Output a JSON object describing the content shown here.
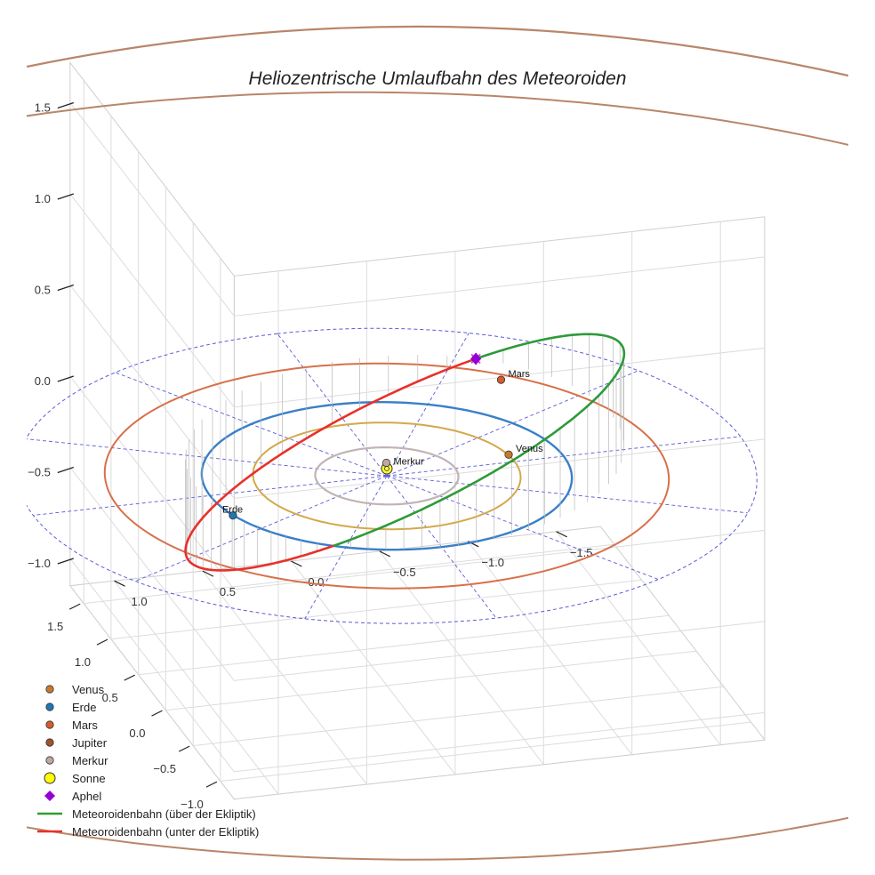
{
  "chart_data": {
    "type": "scatter",
    "projection": "3d",
    "title": "Heliozentrische Umlaufbahn des Meteoroiden",
    "axes": {
      "x": {
        "ticks": [
          -1.0,
          -0.5,
          0.0,
          0.5,
          1.0,
          1.5
        ],
        "labels": [
          "−1.0",
          "−0.5",
          "0.0",
          "0.5",
          "1.0",
          "1.5"
        ]
      },
      "y": {
        "ticks": [
          -1.5,
          -1.0,
          -0.5,
          0.0,
          0.5,
          1.0
        ],
        "labels": [
          "−1.5",
          "−1.0",
          "−0.5",
          "0.0",
          "0.5",
          "1.0"
        ]
      },
      "z": {
        "ticks": [
          -1.0,
          -0.5,
          0.0,
          0.5,
          1.0,
          1.5
        ],
        "labels": [
          "−1.0",
          "−0.5",
          "0.0",
          "0.5",
          "1.0",
          "1.5"
        ]
      },
      "grid": true
    },
    "planets": [
      {
        "name": "Venus",
        "label": "Venus",
        "x": 0.1,
        "y": -0.72,
        "color": "#c87a2c"
      },
      {
        "name": "Erde",
        "label": "Erde",
        "x": -0.29,
        "y": 0.96,
        "color": "#1f77b4"
      },
      {
        "name": "Mars",
        "label": "Mars",
        "x": 1.08,
        "y": -0.98,
        "color": "#d45c2a"
      },
      {
        "name": "Merkur",
        "label": "Merkur",
        "x": 0.17,
        "y": -0.05,
        "color": "#c0a8a0"
      }
    ],
    "orbits": [
      {
        "name": "Merkur",
        "radius_au": 0.387,
        "color": "#c0b4b4"
      },
      {
        "name": "Venus",
        "radius_au": 0.723,
        "color": "#d4a84a"
      },
      {
        "name": "Erde",
        "radius_au": 1.0,
        "color": "#3a7fc8"
      },
      {
        "name": "Mars",
        "radius_au": 1.524,
        "color": "#d8704a"
      },
      {
        "name": "Jupiter",
        "radius_au": 5.2,
        "color": "#b8866a"
      }
    ],
    "reference_circle_au": 2.0,
    "meteoroid_orbit": {
      "a": 1.335,
      "e": 0.253,
      "inclination_deg": 25,
      "arg_perihelion_deg": 0,
      "ascending_node_deg": 0
    },
    "aphel": {
      "label": "Aphel"
    },
    "legend": {
      "position": "bottom-left",
      "entries": [
        {
          "label": "Venus",
          "marker": "dot",
          "color": "#c87a2c"
        },
        {
          "label": "Erde",
          "marker": "dot",
          "color": "#1f77b4"
        },
        {
          "label": "Mars",
          "marker": "dot",
          "color": "#d45c2a"
        },
        {
          "label": "Jupiter",
          "marker": "dot",
          "color": "#a0522d"
        },
        {
          "label": "Merkur",
          "marker": "dot",
          "color": "#c0a8a0"
        },
        {
          "label": "Sonne",
          "marker": "sun",
          "color": "#ffff00"
        },
        {
          "label": "Aphel",
          "marker": "diamond",
          "color": "#9400d3"
        },
        {
          "label": "Meteoroidenbahn (über der Ekliptik)",
          "marker": "line",
          "color": "#2ca02c"
        },
        {
          "label": "Meteoroidenbahn (unter der Ekliptik)",
          "marker": "line",
          "color": "#e8312a"
        }
      ]
    }
  }
}
